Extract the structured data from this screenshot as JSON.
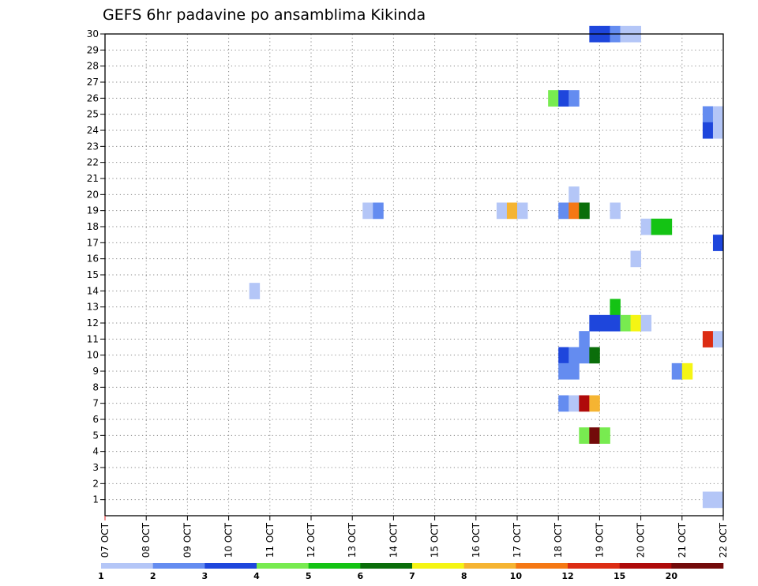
{
  "chart_data": {
    "type": "heatmap",
    "title": "GEFS 6hr padavine po ansamblima Kikinda",
    "xlabel": "",
    "ylabel": "",
    "x_tick_labels": [
      "07 OCT",
      "08 OCT",
      "09 OCT",
      "10 OCT",
      "11 OCT",
      "12 OCT",
      "13 OCT",
      "14 OCT",
      "15 OCT",
      "16 OCT",
      "17 OCT",
      "18 OCT",
      "19 OCT",
      "20 OCT",
      "21 OCT",
      "22 OCT"
    ],
    "xlim_days": [
      0,
      15
    ],
    "ylim": [
      0,
      30
    ],
    "y_tick_labels": [
      "1",
      "2",
      "3",
      "4",
      "5",
      "6",
      "7",
      "8",
      "9",
      "10",
      "11",
      "12",
      "13",
      "14",
      "15",
      "16",
      "17",
      "18",
      "19",
      "20",
      "21",
      "22",
      "23",
      "24",
      "25",
      "26",
      "27",
      "28",
      "29",
      "30"
    ],
    "grid": "dotted",
    "colorbar": {
      "colors": [
        "#b4c6f7",
        "#648cf0",
        "#1e46dc",
        "#78eb50",
        "#14c314",
        "#0a6e0a",
        "#f5f514",
        "#f5b432",
        "#f57814",
        "#dc2d14",
        "#af0a0a",
        "#730a0a"
      ],
      "labels": [
        "1",
        "2",
        "3",
        "4",
        "5",
        "6",
        "7",
        "8",
        "10",
        "12",
        "15",
        "20"
      ]
    },
    "cells": [
      {
        "member": 30,
        "day": 11.75,
        "color": "#1e46dc"
      },
      {
        "member": 30,
        "day": 12.0,
        "color": "#1e46dc"
      },
      {
        "member": 30,
        "day": 12.25,
        "color": "#648cf0"
      },
      {
        "member": 30,
        "day": 12.5,
        "color": "#b4c6f7"
      },
      {
        "member": 30,
        "day": 12.75,
        "color": "#b4c6f7"
      },
      {
        "member": 26,
        "day": 10.75,
        "color": "#78eb50"
      },
      {
        "member": 26,
        "day": 11.0,
        "color": "#1e46dc"
      },
      {
        "member": 26,
        "day": 11.25,
        "color": "#648cf0"
      },
      {
        "member": 25,
        "day": 14.5,
        "color": "#648cf0"
      },
      {
        "member": 25,
        "day": 14.75,
        "color": "#b4c6f7"
      },
      {
        "member": 24,
        "day": 14.5,
        "color": "#1e46dc"
      },
      {
        "member": 24,
        "day": 14.75,
        "color": "#b4c6f7"
      },
      {
        "member": 20,
        "day": 11.25,
        "color": "#b4c6f7"
      },
      {
        "member": 19,
        "day": 6.25,
        "color": "#b4c6f7"
      },
      {
        "member": 19,
        "day": 6.5,
        "color": "#648cf0"
      },
      {
        "member": 19,
        "day": 9.5,
        "color": "#b4c6f7"
      },
      {
        "member": 19,
        "day": 9.75,
        "color": "#f5b432"
      },
      {
        "member": 19,
        "day": 10.0,
        "color": "#b4c6f7"
      },
      {
        "member": 19,
        "day": 11.0,
        "color": "#648cf0"
      },
      {
        "member": 19,
        "day": 11.25,
        "color": "#f57814"
      },
      {
        "member": 19,
        "day": 11.5,
        "color": "#0a6e0a"
      },
      {
        "member": 19,
        "day": 12.25,
        "color": "#b4c6f7"
      },
      {
        "member": 18,
        "day": 13.0,
        "color": "#b4c6f7"
      },
      {
        "member": 18,
        "day": 13.25,
        "color": "#14c314"
      },
      {
        "member": 18,
        "day": 13.5,
        "color": "#14c314"
      },
      {
        "member": 17,
        "day": 14.75,
        "color": "#1e46dc"
      },
      {
        "member": 16,
        "day": 12.75,
        "color": "#b4c6f7"
      },
      {
        "member": 14,
        "day": 3.5,
        "color": "#b4c6f7"
      },
      {
        "member": 13,
        "day": 12.25,
        "color": "#14c314"
      },
      {
        "member": 12,
        "day": 11.75,
        "color": "#1e46dc"
      },
      {
        "member": 12,
        "day": 12.0,
        "color": "#1e46dc"
      },
      {
        "member": 12,
        "day": 12.25,
        "color": "#1e46dc"
      },
      {
        "member": 12,
        "day": 12.5,
        "color": "#78eb50"
      },
      {
        "member": 12,
        "day": 12.75,
        "color": "#f5f514"
      },
      {
        "member": 12,
        "day": 13.0,
        "color": "#b4c6f7"
      },
      {
        "member": 11,
        "day": 11.5,
        "color": "#648cf0"
      },
      {
        "member": 11,
        "day": 14.5,
        "color": "#dc2d14"
      },
      {
        "member": 11,
        "day": 14.75,
        "color": "#b4c6f7"
      },
      {
        "member": 10,
        "day": 11.0,
        "color": "#1e46dc"
      },
      {
        "member": 10,
        "day": 11.25,
        "color": "#648cf0"
      },
      {
        "member": 10,
        "day": 11.5,
        "color": "#648cf0"
      },
      {
        "member": 10,
        "day": 11.75,
        "color": "#0a6e0a"
      },
      {
        "member": 9,
        "day": 11.0,
        "color": "#648cf0"
      },
      {
        "member": 9,
        "day": 11.25,
        "color": "#648cf0"
      },
      {
        "member": 9,
        "day": 13.75,
        "color": "#648cf0"
      },
      {
        "member": 9,
        "day": 14.0,
        "color": "#f5f514"
      },
      {
        "member": 7,
        "day": 11.0,
        "color": "#648cf0"
      },
      {
        "member": 7,
        "day": 11.25,
        "color": "#b4c6f7"
      },
      {
        "member": 7,
        "day": 11.5,
        "color": "#af0a0a"
      },
      {
        "member": 7,
        "day": 11.75,
        "color": "#f5b432"
      },
      {
        "member": 5,
        "day": 11.5,
        "color": "#78eb50"
      },
      {
        "member": 5,
        "day": 11.75,
        "color": "#730a0a"
      },
      {
        "member": 5,
        "day": 12.0,
        "color": "#78eb50"
      },
      {
        "member": 1,
        "day": 14.5,
        "color": "#b4c6f7"
      },
      {
        "member": 1,
        "day": 14.75,
        "color": "#b4c6f7"
      }
    ]
  }
}
